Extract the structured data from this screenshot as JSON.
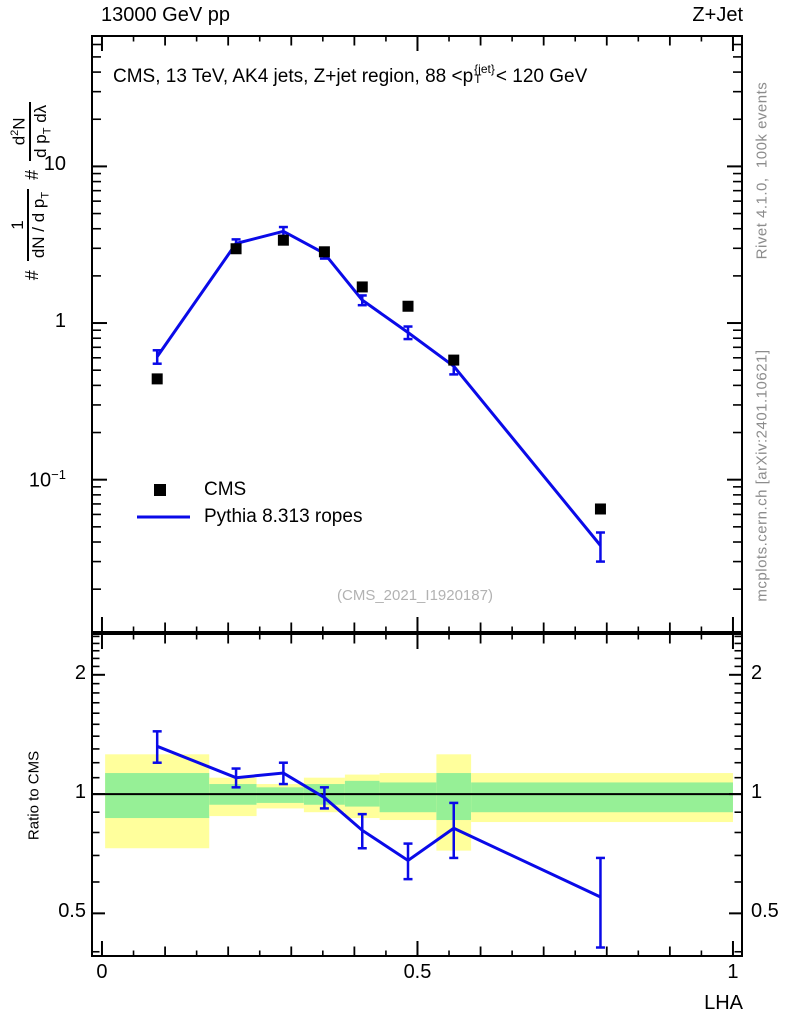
{
  "header": {
    "beam": "13000 GeV pp",
    "process": "Z+Jet"
  },
  "title": {
    "prefix": "CMS, 13 TeV, AK4 jets, Z+jet region, 88 <p",
    "sup": "{jet}",
    "sub": "T",
    "suffix": "< 120 GeV"
  },
  "ylabel": {
    "hash1": "#",
    "f1_num": "1",
    "f1_den": "dN / d p",
    "f1_den_sub": "T",
    "hash2": "#",
    "f2_num_d": "d",
    "f2_num_sup": "2",
    "f2_num_n": "N",
    "f2_den": "d p",
    "f2_den_sub": "T",
    "f2_den_tail": " dλ"
  },
  "ratio_label": "Ratio to CMS",
  "right_margin": {
    "rivet": "Rivet 4.1.0,  100k events",
    "mcplots": "mcplots.cern.ch [arXiv:2401.10621]"
  },
  "watermark": "(CMS_2021_I1920187)",
  "legend": [
    {
      "label": "CMS",
      "marker": "square"
    },
    {
      "label": "Pythia 8.313 ropes",
      "marker": "line"
    }
  ],
  "x_axis_title": "LHA",
  "colors": {
    "line": "#0a0ae8",
    "marker": "#000000",
    "band_yellow": "#ffff9c",
    "band_green": "#96f096",
    "frame": "#000000",
    "gray_text": "#8c8c8c",
    "watermark": "#b2b2b2"
  },
  "chart_data": {
    "type": "line",
    "title": "CMS, 13 TeV, AK4 jets, Z+jet region, 88 <pT{jet}< 120 GeV",
    "xlabel": "LHA",
    "x_range": [
      -0.0174,
      1.0159
    ],
    "x_ticks": {
      "major": [
        0,
        0.5,
        1
      ],
      "labels": [
        "0",
        "0.5",
        "1"
      ],
      "medium_step": 0.1,
      "minor_step": 0.05
    },
    "main": {
      "y_scale": "log",
      "y_range": [
        0.0105,
        69
      ],
      "y_ticks": [
        {
          "v": 10,
          "label": "10"
        },
        {
          "v": 1,
          "label": "1"
        },
        {
          "v": 0.1,
          "label": "10",
          "sup": "−1"
        }
      ],
      "x": [
        0.0875,
        0.2125,
        0.2875,
        0.3525,
        0.4125,
        0.485,
        0.5575,
        0.79
      ],
      "series": [
        {
          "name": "CMS",
          "values": [
            0.44,
            2.98,
            3.38,
            2.85,
            1.7,
            1.28,
            0.58,
            0.065
          ]
        },
        {
          "name": "Pythia 8.313 ropes",
          "values": [
            0.61,
            3.22,
            3.85,
            2.78,
            1.4,
            0.87,
            0.53,
            0.038
          ],
          "errors": [
            0.06,
            0.2,
            0.25,
            0.2,
            0.1,
            0.08,
            0.06,
            0.008
          ]
        }
      ]
    },
    "ratio": {
      "y_scale": "log",
      "y_range": [
        0.388,
        2.55
      ],
      "y_ticks": [
        {
          "v": 2,
          "label": "2"
        },
        {
          "v": 1,
          "label": "1"
        },
        {
          "v": 0.5,
          "label": "0.5"
        }
      ],
      "minor_from": 0.4,
      "minor_to": 2.5,
      "minor_step": 0.1,
      "reference_line": 1,
      "x": [
        0.0875,
        0.2125,
        0.2875,
        0.3525,
        0.4125,
        0.485,
        0.5575,
        0.79
      ],
      "values": [
        1.32,
        1.1,
        1.13,
        0.98,
        0.81,
        0.68,
        0.82,
        0.55
      ],
      "errors": [
        0.12,
        0.06,
        0.07,
        0.06,
        0.08,
        0.07,
        0.13,
        0.14
      ],
      "bands": {
        "edges": [
          0.005,
          0.17,
          0.245,
          0.32,
          0.385,
          0.44,
          0.53,
          0.585,
          1.0
        ],
        "yellow_lo": [
          0.73,
          0.88,
          0.92,
          0.9,
          0.87,
          0.86,
          0.72,
          0.85
        ],
        "yellow_hi": [
          1.26,
          1.1,
          1.06,
          1.1,
          1.12,
          1.13,
          1.26,
          1.13
        ],
        "green_lo": [
          0.87,
          0.94,
          0.95,
          0.94,
          0.93,
          0.9,
          0.86,
          0.9
        ],
        "green_hi": [
          1.13,
          1.06,
          1.04,
          1.06,
          1.08,
          1.07,
          1.13,
          1.07
        ]
      }
    }
  }
}
